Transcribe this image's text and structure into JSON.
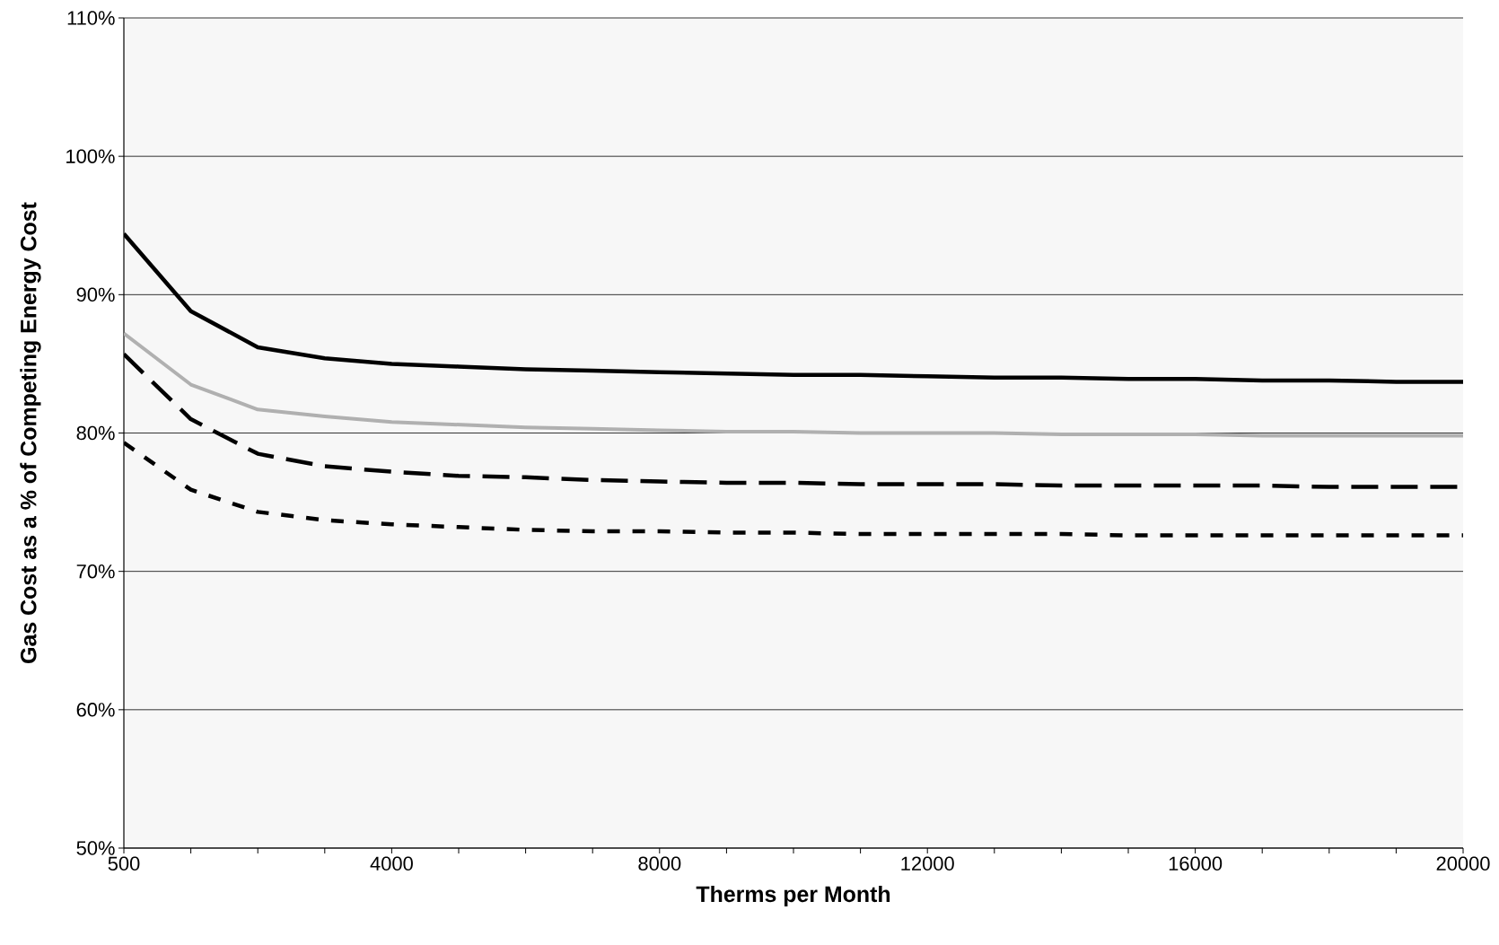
{
  "chart_data": {
    "type": "line",
    "xlabel": "Therms per Month",
    "ylabel": "Gas Cost as a % of Competing Energy Cost",
    "categories": [
      "500",
      null,
      null,
      null,
      "4000",
      null,
      null,
      null,
      "8000",
      null,
      null,
      null,
      "12000",
      null,
      null,
      null,
      "16000",
      null,
      null,
      null,
      "20000"
    ],
    "series": [
      {
        "color": "#000000",
        "line_style": "solid",
        "values": [
          94.4,
          88.8,
          86.2,
          85.4,
          85.0,
          84.8,
          84.6,
          84.5,
          84.4,
          84.3,
          84.2,
          84.2,
          84.1,
          84.0,
          84.0,
          83.9,
          83.9,
          83.8,
          83.8,
          83.7,
          83.7
        ]
      },
      {
        "color": "#b0b0b0",
        "line_style": "solid",
        "values": [
          87.2,
          83.5,
          81.7,
          81.2,
          80.8,
          80.6,
          80.4,
          80.3,
          80.2,
          80.1,
          80.1,
          80.0,
          80.0,
          80.0,
          79.9,
          79.9,
          79.9,
          79.8,
          79.8,
          79.8,
          79.8
        ]
      },
      {
        "color": "#000000",
        "line_style": "dashed",
        "values": [
          85.7,
          81.0,
          78.5,
          77.6,
          77.2,
          76.9,
          76.8,
          76.6,
          76.5,
          76.4,
          76.4,
          76.3,
          76.3,
          76.3,
          76.2,
          76.2,
          76.2,
          76.2,
          76.1,
          76.1,
          76.1
        ]
      },
      {
        "color": "#000000",
        "line_style": "dashed",
        "values": [
          79.3,
          75.9,
          74.3,
          73.7,
          73.4,
          73.2,
          73.0,
          72.9,
          72.9,
          72.8,
          72.8,
          72.7,
          72.7,
          72.7,
          72.7,
          72.6,
          72.6,
          72.6,
          72.6,
          72.6,
          72.6
        ]
      }
    ],
    "ylim": [
      50,
      110
    ],
    "yticks": [
      {
        "value": 50,
        "label": "50%"
      },
      {
        "value": 60,
        "label": "60%"
      },
      {
        "value": 70,
        "label": "70%"
      },
      {
        "value": 80,
        "label": "80%"
      },
      {
        "value": 90,
        "label": "90%"
      },
      {
        "value": 100,
        "label": "100%"
      },
      {
        "value": 110,
        "label": "110%"
      }
    ],
    "grid": "y"
  }
}
